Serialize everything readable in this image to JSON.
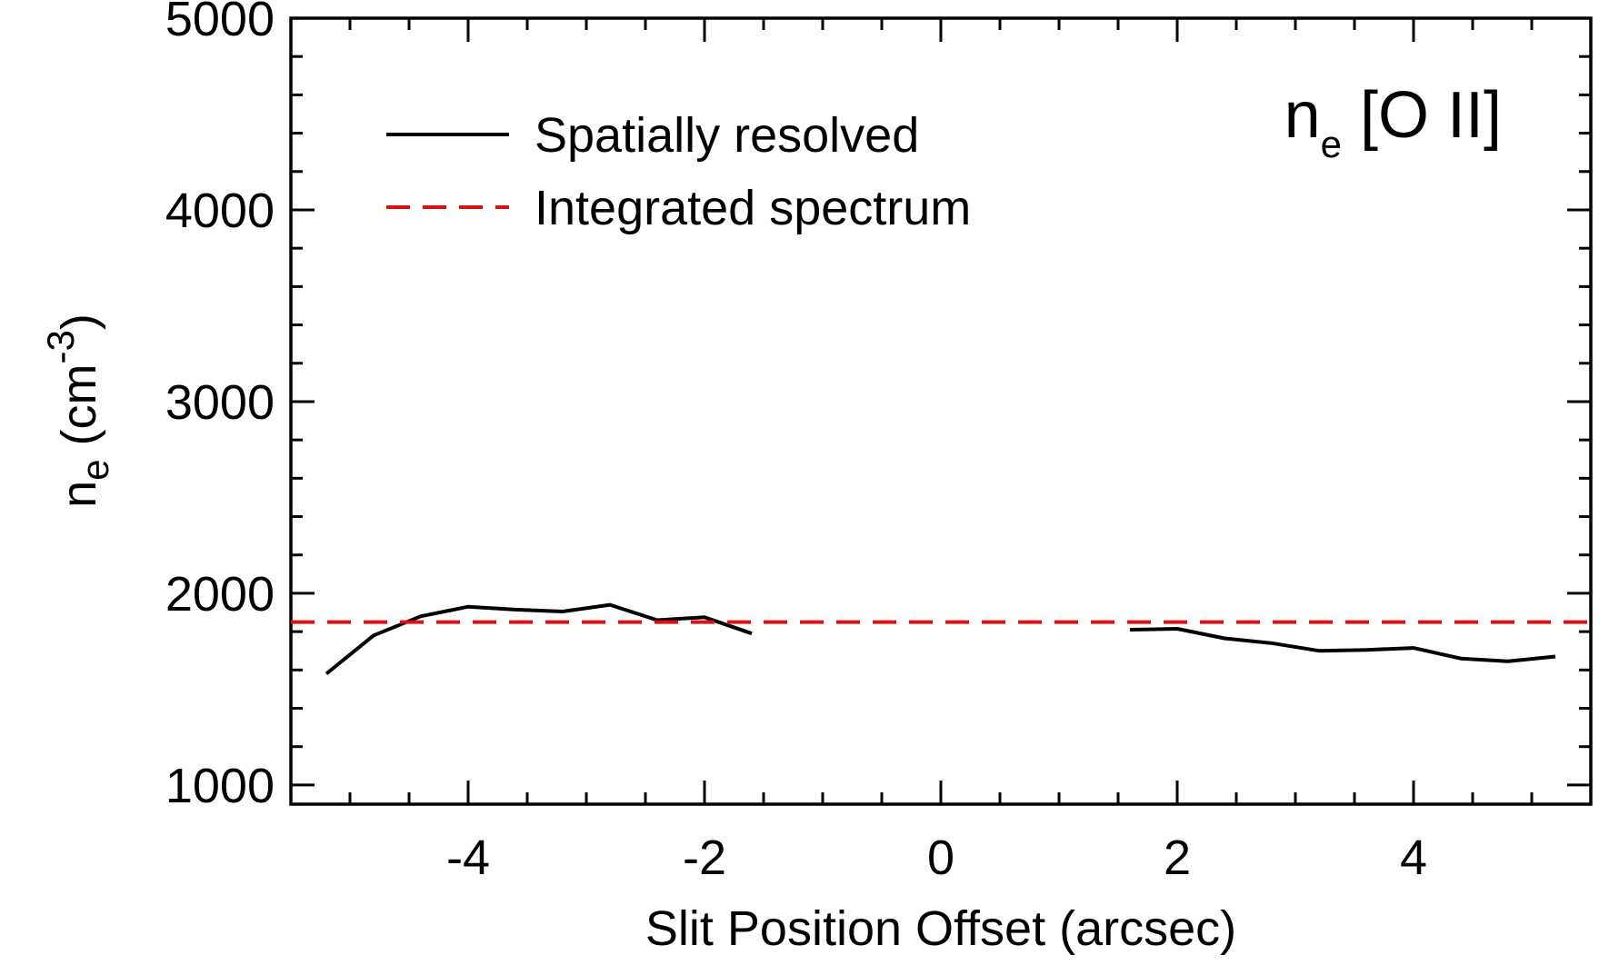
{
  "chart_data": {
    "type": "line",
    "title": "",
    "annotation": {
      "base": "n",
      "subscript": "e",
      "rest": " [O II]"
    },
    "xlabel": "Slit Position Offset (arcsec)",
    "ylabel": {
      "base": "n",
      "subscript": "e",
      "unit_prefix": " (cm",
      "superscript": "-3",
      "unit_suffix": ")"
    },
    "xlim": [
      -5.5,
      5.5
    ],
    "ylim": [
      900,
      5000
    ],
    "xticks": [
      -4,
      -2,
      0,
      2,
      4
    ],
    "xtick_labels": [
      "-4",
      "-2",
      "0",
      "2",
      "4"
    ],
    "x_minor_step": 0.5,
    "yticks": [
      1000,
      2000,
      3000,
      4000,
      5000
    ],
    "ytick_labels": [
      "1000",
      "2000",
      "3000",
      "4000",
      "5000"
    ],
    "y_minor_step": 200,
    "grid": false,
    "legend_position": "top-left",
    "series": [
      {
        "name": "Spatially resolved",
        "color": "#000000",
        "style": "solid",
        "segments": [
          [
            [
              -5.2,
              1580
            ],
            [
              -4.8,
              1780
            ],
            [
              -4.4,
              1880
            ],
            [
              -4.0,
              1930
            ],
            [
              -3.6,
              1915
            ],
            [
              -3.2,
              1905
            ],
            [
              -2.8,
              1940
            ],
            [
              -2.4,
              1860
            ],
            [
              -2.0,
              1875
            ],
            [
              -1.6,
              1790
            ]
          ],
          [
            [
              1.6,
              1810
            ],
            [
              2.0,
              1815
            ],
            [
              2.4,
              1765
            ],
            [
              2.8,
              1740
            ],
            [
              3.2,
              1700
            ],
            [
              3.6,
              1705
            ],
            [
              4.0,
              1715
            ],
            [
              4.4,
              1660
            ],
            [
              4.8,
              1645
            ],
            [
              5.2,
              1670
            ]
          ]
        ]
      },
      {
        "name": "Integrated spectrum",
        "color": "#dd1111",
        "style": "dashed",
        "value": 1850
      }
    ]
  }
}
